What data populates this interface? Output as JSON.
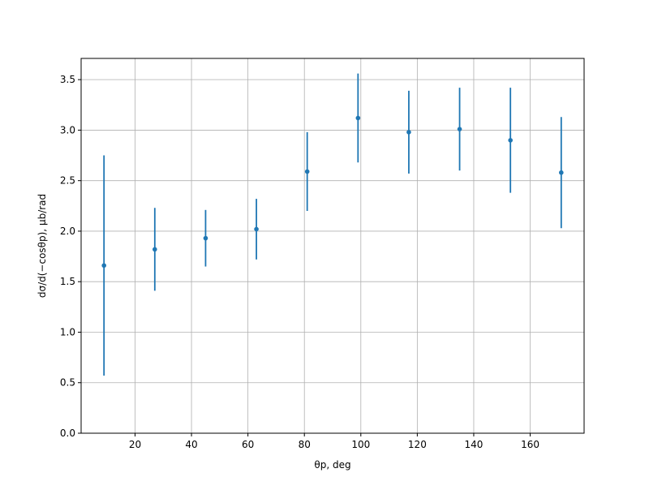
{
  "chart_data": {
    "type": "errorbar",
    "xlabel": "θp, deg",
    "ylabel": "dσ/d(−cosθp), μb/rad",
    "x": [
      9,
      27,
      45,
      63,
      81,
      99,
      117,
      135,
      153,
      171
    ],
    "series": [
      {
        "color": "#1f77b4",
        "values": [
          1.66,
          1.82,
          1.93,
          2.02,
          2.59,
          3.12,
          2.98,
          3.01,
          2.9,
          2.58
        ],
        "errors": [
          1.09,
          0.41,
          0.28,
          0.3,
          0.39,
          0.44,
          0.41,
          0.41,
          0.52,
          0.55
        ]
      }
    ],
    "xlim": [
      0.9,
      179.1
    ],
    "ylim": [
      0,
      3.71
    ],
    "xticks": [
      20,
      40,
      60,
      80,
      100,
      120,
      140,
      160
    ],
    "yticks": [
      {
        "value": 0,
        "label": "0.0"
      },
      0.5,
      {
        "value": 1,
        "label": "1.0"
      },
      1.5,
      {
        "value": 2,
        "label": "2.0"
      },
      2.5,
      {
        "value": 3,
        "label": "3.0"
      },
      3.5
    ],
    "grid": true
  }
}
